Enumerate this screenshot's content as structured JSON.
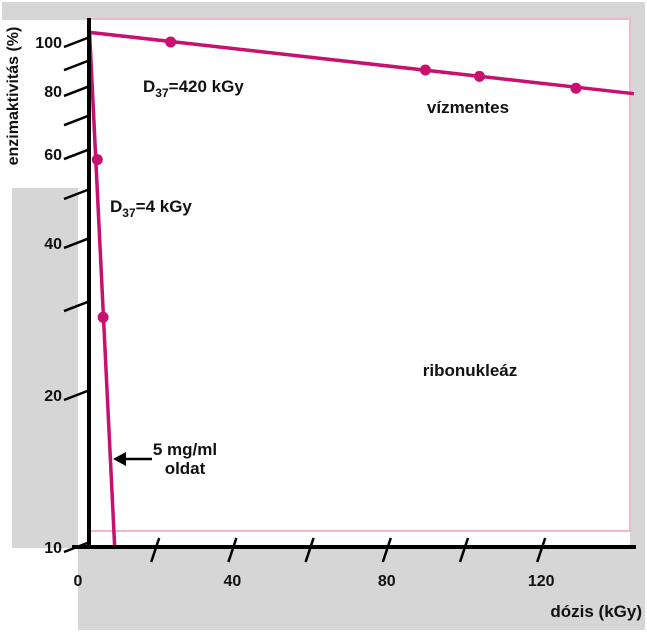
{
  "chart_data": {
    "type": "line",
    "title": "",
    "xlabel": "dózis (kGy)",
    "ylabel": "enzimaktivitás (%)",
    "y_scale": "log",
    "xlim": [
      0,
      144
    ],
    "ylim": [
      10,
      110
    ],
    "x_ticks": [
      0,
      20,
      40,
      60,
      80,
      100,
      120
    ],
    "x_tick_labels": [
      {
        "value": 0,
        "label": "0"
      },
      {
        "value": 40,
        "label": "40"
      },
      {
        "value": 80,
        "label": "80"
      },
      {
        "value": 120,
        "label": "120"
      }
    ],
    "y_ticks": [
      10,
      20,
      30,
      40,
      50,
      60,
      70,
      80,
      90,
      100
    ],
    "y_tick_labels": [
      {
        "value": 100,
        "label": "100"
      },
      {
        "value": 80,
        "label": "80"
      },
      {
        "value": 60,
        "label": "60"
      },
      {
        "value": 40,
        "label": "40"
      },
      {
        "value": 20,
        "label": "20"
      },
      {
        "value": 10,
        "label": "10"
      }
    ],
    "series": [
      {
        "name": "vízmentes",
        "color": "#c8106e",
        "line": {
          "x": [
            3,
            144
          ],
          "y": [
            104.5,
            79
          ]
        },
        "points": [
          {
            "x": 24,
            "y": 100
          },
          {
            "x": 90,
            "y": 88
          },
          {
            "x": 104,
            "y": 85.5
          },
          {
            "x": 129,
            "y": 81
          }
        ]
      },
      {
        "name": "5 mg/ml oldat",
        "color": "#c8106e",
        "line": {
          "x": [
            3,
            9.5
          ],
          "y": [
            104.5,
            10
          ]
        },
        "points": [
          {
            "x": 5,
            "y": 58.5
          },
          {
            "x": 6.5,
            "y": 28.5
          }
        ]
      }
    ],
    "annotations": {
      "d37_dry": {
        "base": "D",
        "sub": "37",
        "rest": "=420 kGy"
      },
      "d37_sol": {
        "base": "D",
        "sub": "37",
        "rest": "=4 kGy"
      },
      "dry_label": "vízmentes",
      "enzyme": "ribonukleáz",
      "solution_line1": "5 mg/ml",
      "solution_line2": "oldat"
    },
    "colors": {
      "series": "#c8106e",
      "frame_border": "#f0b8cc",
      "shadow": "#d6d6d6",
      "axis": "#000000"
    }
  }
}
